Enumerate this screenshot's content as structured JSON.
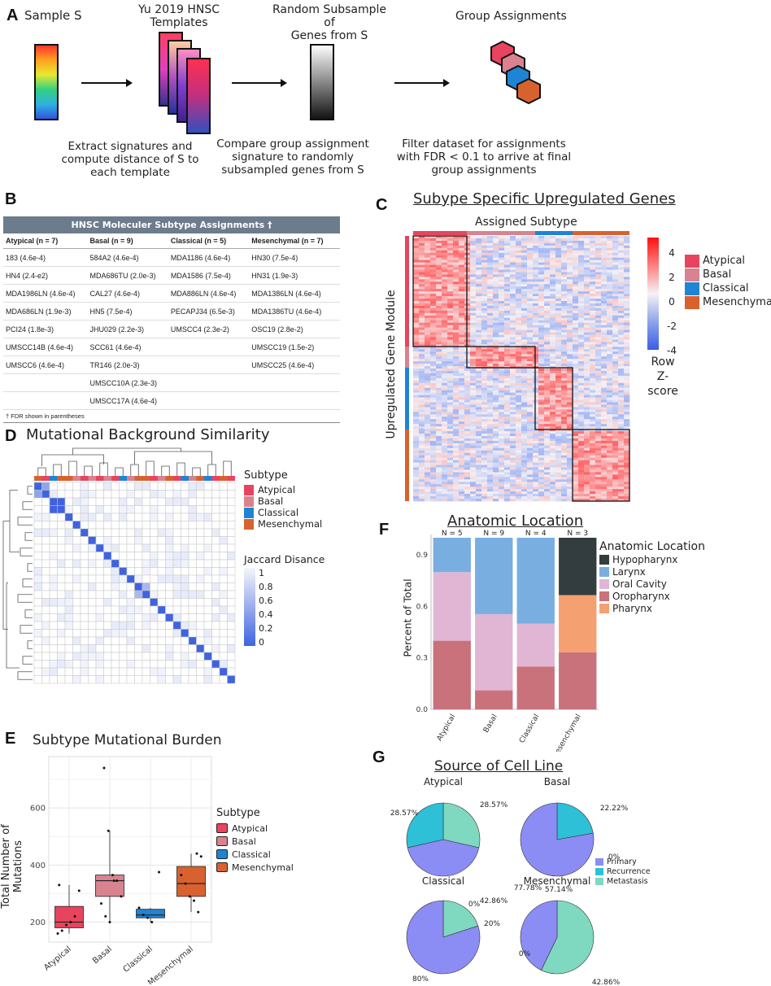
{
  "panels": {
    "A": "A",
    "B": "B",
    "C": "C",
    "D": "D",
    "E": "E",
    "F": "F",
    "G": "G"
  },
  "panelA": {
    "sample_label": "Sample S",
    "templates_label_line1": "Yu 2019 HNSC",
    "templates_label_line2": "Templates",
    "random_label_line1": "Random Subsample of",
    "random_label_line2": "Genes from S",
    "group_label": "Group Assignments",
    "caption1": [
      "Extract signatures and",
      "compute distance of S to",
      "each template"
    ],
    "caption2": [
      "Compare group assignment",
      "signature to randomly",
      "subsampled genes from S"
    ],
    "caption3": [
      "Filter dataset for assignments",
      "with FDR < 0.1 to arrive at final",
      "group assignments"
    ]
  },
  "panelB": {
    "title": "HNSC Moleculer Subtype Assignments †",
    "headers": [
      "Atypical (n = 7)",
      "Basal (n = 9)",
      "Classical (n = 5)",
      "Mesenchymal (n = 7)"
    ],
    "rows": [
      [
        "183 (4.6e-4)",
        "584A2 (4.6e-4)",
        "MDA1186 (4.6e-4)",
        "HN30 (7.5e-4)"
      ],
      [
        "HN4 (2.4-e2)",
        "MDA686TU (2.0e-3)",
        "MDA1586 (7.5e-4)",
        "HN31 (1.9e-3)"
      ],
      [
        "MDA1986LN (4.6e-4)",
        "CAL27 (4.6e-4)",
        "MDA886LN (4.6e-4)",
        "MDA1386LN (4.6e-4)"
      ],
      [
        "MDA686LN (1.9e-3)",
        "HN5 (7.5e-4)",
        "PECAPJ34 (6.5e-3)",
        "MDA1386TU (4.6e-4)"
      ],
      [
        "PCI24 (1.8e-3)",
        "JHU029 (2.2e-3)",
        "UMSCC4 (2.3e-2)",
        "OSC19 (2.8e-2)"
      ],
      [
        "UMSCC14B (4.6e-4)",
        "SCC61 (4.6e-4)",
        "",
        "UMSCC19 (1.5e-2)"
      ],
      [
        "UMSCC6 (4.6e-4)",
        "TR146 (2.0e-3)",
        "",
        "UMSCC25 (4.6e-4)"
      ],
      [
        "",
        "UMSCC10A (2.3e-3)",
        "",
        ""
      ],
      [
        "",
        "UMSCC17A (4.6e-4)",
        "",
        ""
      ]
    ],
    "footnote": "† FDR shown in parentheses"
  },
  "panelC": {
    "title": "Subype Specific Upregulated Genes",
    "top_label": "Assigned Subtype",
    "side_label": "Upregulated Gene Module",
    "scale_ticks": [
      "4",
      "2",
      "0",
      "-2",
      "-4"
    ],
    "scale_title_line1": "Row",
    "scale_title_line2": "Z-score",
    "legend": [
      "Atypical",
      "Basal",
      "Classical",
      "Mesenchymal"
    ]
  },
  "panelD": {
    "title": "Mutational Background Similarity",
    "legend_title": "Subtype",
    "legend": [
      "Atypical",
      "Basal",
      "Classical",
      "Mesenchymal"
    ],
    "scale_title": "Jaccard Disance",
    "scale_ticks": [
      "1",
      "0.8",
      "0.6",
      "0.4",
      "0.2",
      "0"
    ]
  },
  "colors": {
    "atypical": "#e8445f",
    "basal": "#d8838f",
    "classical": "#1f84d4",
    "mesenchymal": "#d8622f",
    "hypopharynx": "#333d3f",
    "larynx": "#79aee0",
    "oral_cavity": "#e0b6d4",
    "oropharynx": "#c9727b",
    "pharynx": "#f5a070",
    "primary": "#8c8cf5",
    "recurrence": "#2ec0d6",
    "metastasis": "#7fd8c0"
  },
  "chart_data": [
    {
      "id": "E",
      "type": "box",
      "title": "Subtype Mutational Burden",
      "ylabel": "Total Number of Mutations",
      "categories": [
        "Atypical",
        "Basal",
        "Classical",
        "Mesenchymal"
      ],
      "ylim": [
        130,
        780
      ],
      "yticks": [
        200,
        400,
        600
      ],
      "legend_title": "Subtype",
      "boxes": [
        {
          "name": "Atypical",
          "q1": 180,
          "median": 200,
          "q3": 255,
          "lower": 160,
          "upper": 330
        },
        {
          "name": "Basal",
          "q1": 290,
          "median": 345,
          "q3": 365,
          "lower": 200,
          "upper": 520
        },
        {
          "name": "Classical",
          "q1": 215,
          "median": 225,
          "q3": 245,
          "lower": 200,
          "upper": 250
        },
        {
          "name": "Mesenchymal",
          "q1": 290,
          "median": 335,
          "q3": 395,
          "lower": 235,
          "upper": 440
        }
      ],
      "points": [
        {
          "cat": 0,
          "y": 160
        },
        {
          "cat": 0,
          "y": 170
        },
        {
          "cat": 0,
          "y": 190
        },
        {
          "cat": 0,
          "y": 200
        },
        {
          "cat": 0,
          "y": 220
        },
        {
          "cat": 0,
          "y": 310
        },
        {
          "cat": 0,
          "y": 330
        },
        {
          "cat": 1,
          "y": 740
        },
        {
          "cat": 1,
          "y": 520
        },
        {
          "cat": 1,
          "y": 365
        },
        {
          "cat": 1,
          "y": 345
        },
        {
          "cat": 1,
          "y": 290
        },
        {
          "cat": 1,
          "y": 265
        },
        {
          "cat": 1,
          "y": 220
        },
        {
          "cat": 1,
          "y": 200
        },
        {
          "cat": 1,
          "y": 345
        },
        {
          "cat": 2,
          "y": 375
        },
        {
          "cat": 2,
          "y": 250
        },
        {
          "cat": 2,
          "y": 225
        },
        {
          "cat": 2,
          "y": 215
        },
        {
          "cat": 2,
          "y": 200
        },
        {
          "cat": 3,
          "y": 440
        },
        {
          "cat": 3,
          "y": 430
        },
        {
          "cat": 3,
          "y": 365
        },
        {
          "cat": 3,
          "y": 335
        },
        {
          "cat": 3,
          "y": 290
        },
        {
          "cat": 3,
          "y": 275
        },
        {
          "cat": 3,
          "y": 235
        }
      ]
    },
    {
      "id": "F",
      "type": "bar",
      "stacked": true,
      "title": "Anatomic Location",
      "ylabel": "Percent of Total",
      "categories": [
        "Atypical",
        "Basal",
        "Classical",
        "Mesenchymal"
      ],
      "n_labels": [
        "N = 5",
        "N = 9",
        "N = 4",
        "N = 3"
      ],
      "yticks": [
        "0.0",
        "0.3",
        "0.6",
        "0.9"
      ],
      "legend_title": "Anatomic Location",
      "series": [
        {
          "name": "Oropharynx",
          "key": "oropharynx",
          "values": [
            0.4,
            0.111,
            0.25,
            0.333
          ]
        },
        {
          "name": "Oral Cavity",
          "key": "oral_cavity",
          "values": [
            0.4,
            0.444,
            0.25,
            0.0
          ]
        },
        {
          "name": "Pharynx",
          "key": "pharynx",
          "values": [
            0.0,
            0.0,
            0.0,
            0.333
          ]
        },
        {
          "name": "Larynx",
          "key": "larynx",
          "values": [
            0.2,
            0.445,
            0.5,
            0.0
          ]
        },
        {
          "name": "Hypopharynx",
          "key": "hypopharynx",
          "values": [
            0.0,
            0.0,
            0.0,
            0.334
          ]
        }
      ],
      "legend_order": [
        "Hypopharynx",
        "Larynx",
        "Oral Cavity",
        "Oropharynx",
        "Pharynx"
      ]
    },
    {
      "id": "G",
      "type": "pie",
      "title": "Source of Cell Line",
      "legend": [
        "Primary",
        "Recurrence",
        "Metastasis"
      ],
      "pies": [
        {
          "name": "Atypical",
          "slices": [
            {
              "label": "Primary",
              "value": 42.86,
              "text": "42.86%"
            },
            {
              "label": "Recurrence",
              "value": 28.57,
              "text": "28.57%"
            },
            {
              "label": "Metastasis",
              "value": 28.57,
              "text": "28.57%"
            }
          ]
        },
        {
          "name": "Basal",
          "slices": [
            {
              "label": "Primary",
              "value": 77.78,
              "text": "77.78%"
            },
            {
              "label": "Recurrence",
              "value": 22.22,
              "text": "22.22%"
            },
            {
              "label": "Metastasis",
              "value": 0,
              "text": "0%"
            }
          ]
        },
        {
          "name": "Classical",
          "slices": [
            {
              "label": "Primary",
              "value": 80,
              "text": "80%"
            },
            {
              "label": "Recurrence",
              "value": 0,
              "text": "0%"
            },
            {
              "label": "Metastasis",
              "value": 20,
              "text": "20%"
            }
          ]
        },
        {
          "name": "Mesenchymal",
          "slices": [
            {
              "label": "Primary",
              "value": 42.86,
              "text": "42.86%"
            },
            {
              "label": "Recurrence",
              "value": 0,
              "text": "0%"
            },
            {
              "label": "Metastasis",
              "value": 57.14,
              "text": "57.14%"
            }
          ]
        }
      ]
    }
  ]
}
